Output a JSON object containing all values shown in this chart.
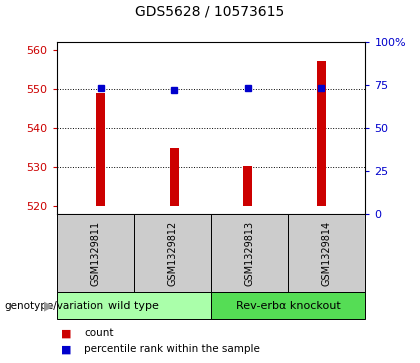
{
  "title": "GDS5628 / 10573615",
  "samples": [
    "GSM1329811",
    "GSM1329812",
    "GSM1329813",
    "GSM1329814"
  ],
  "bar_bottom": 520,
  "bar_tops": [
    549,
    535,
    530.3,
    557
  ],
  "percentile_values_pct": [
    73,
    72,
    73,
    73
  ],
  "bar_color": "#cc0000",
  "percentile_color": "#0000cc",
  "ylim_left": [
    518,
    562
  ],
  "ylim_right": [
    0,
    100
  ],
  "yticks_left": [
    520,
    530,
    540,
    550,
    560
  ],
  "yticks_right": [
    0,
    25,
    50,
    75,
    100
  ],
  "ytick_labels_right": [
    "0",
    "25",
    "50",
    "75",
    "100%"
  ],
  "groups": [
    {
      "label": "wild type",
      "indices": [
        0,
        1
      ],
      "color": "#aaffaa"
    },
    {
      "label": "Rev-erbα knockout",
      "indices": [
        2,
        3
      ],
      "color": "#55dd55"
    }
  ],
  "bg_color": "#ffffff",
  "sample_bg_color": "#cccccc",
  "left_tick_color": "#cc0000",
  "right_tick_color": "#0000cc"
}
